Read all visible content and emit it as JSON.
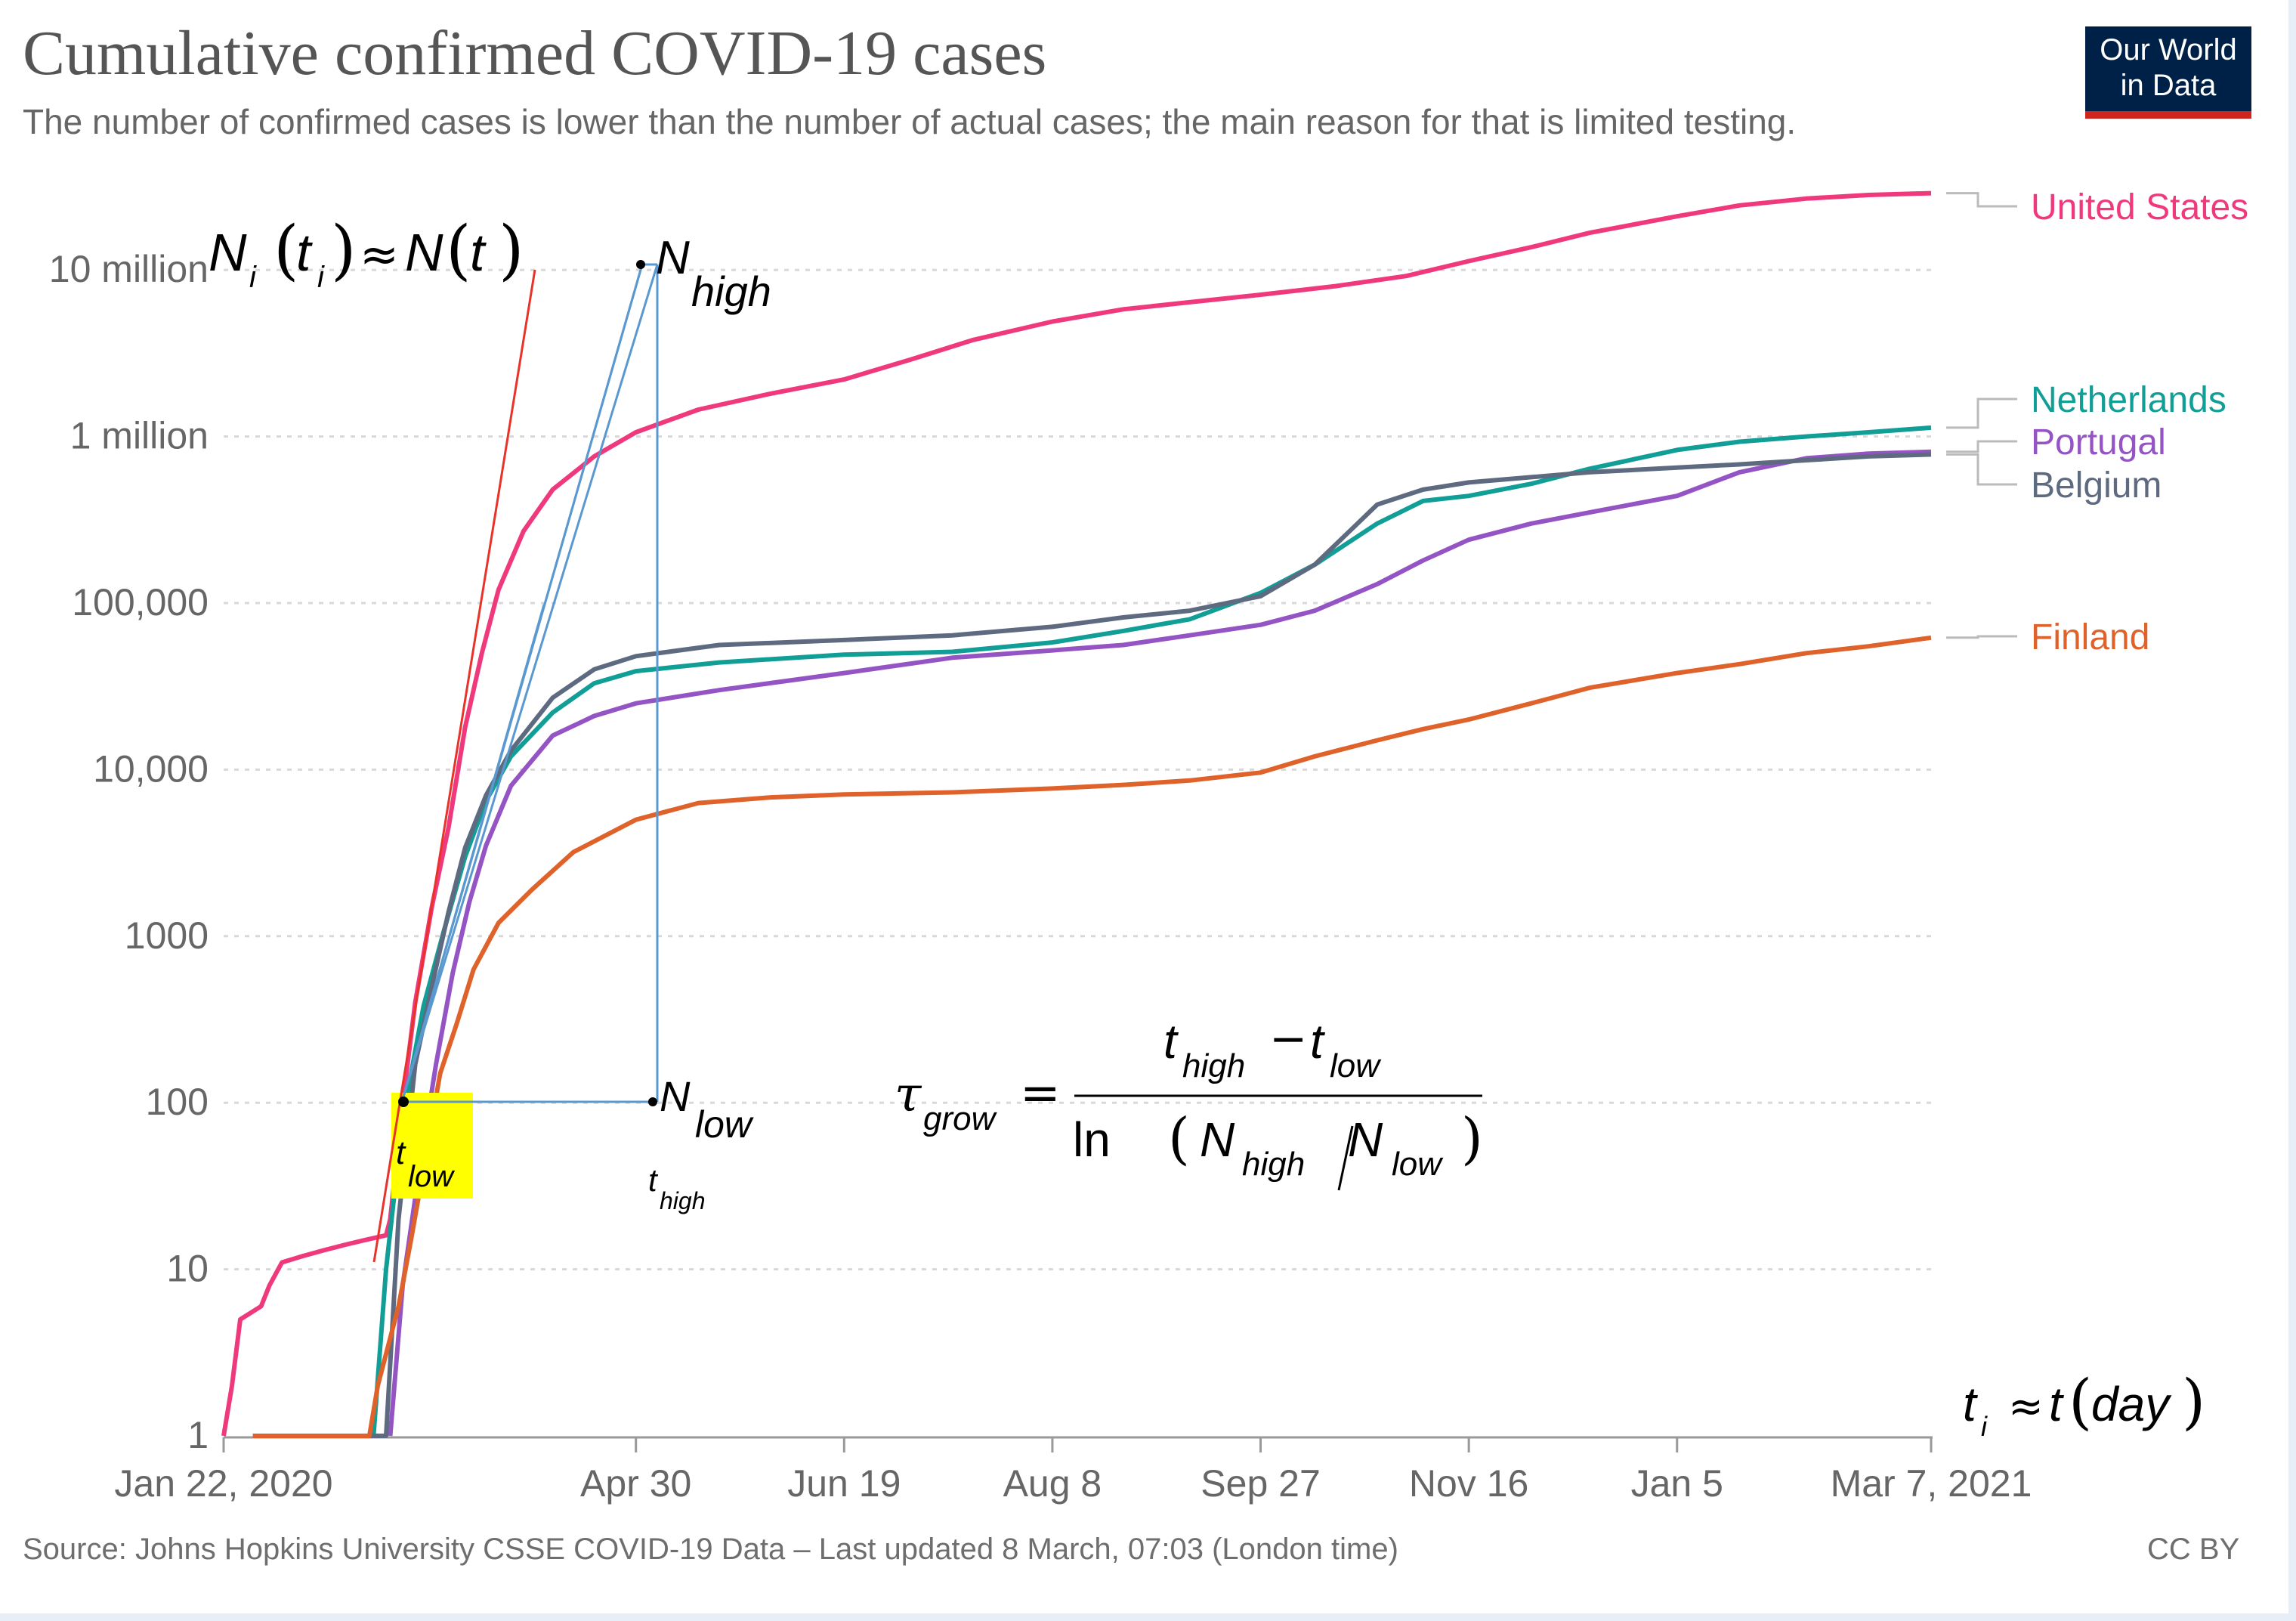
{
  "header": {
    "title": "Cumulative confirmed COVID-19 cases",
    "subtitle": "The number of confirmed cases is lower than the number of actual cases; the main reason for that is limited testing."
  },
  "logo": {
    "line1": "Our World",
    "line2": "in Data"
  },
  "footer": {
    "source": "Source: Johns Hopkins University CSSE COVID-19 Data – Last updated 8 March, 07:03 (London time)",
    "license": "CC BY"
  },
  "colors": {
    "United States": "#f0397d",
    "Netherlands": "#119e96",
    "Portugal": "#9454c4",
    "Belgium": "#5d6a80",
    "Finland": "#e0622b",
    "annotation_red": "#e8332a",
    "annotation_blue": "#5a98d0",
    "highlight": "#ffff00"
  },
  "chart_data": {
    "type": "line",
    "title": "Cumulative confirmed COVID-19 cases",
    "y_scale": "log",
    "ylim": [
      1,
      20000000
    ],
    "xlim": [
      "2020-01-22",
      "2021-03-07"
    ],
    "x_ticks": [
      {
        "date": "2020-01-22",
        "label": "Jan 22, 2020"
      },
      {
        "date": "2020-04-30",
        "label": "Apr 30"
      },
      {
        "date": "2020-06-19",
        "label": "Jun 19"
      },
      {
        "date": "2020-08-08",
        "label": "Aug 8"
      },
      {
        "date": "2020-09-27",
        "label": "Sep 27"
      },
      {
        "date": "2020-11-16",
        "label": "Nov 16"
      },
      {
        "date": "2021-01-05",
        "label": "Jan 5"
      },
      {
        "date": "2021-03-07",
        "label": "Mar 7, 2021"
      }
    ],
    "y_ticks": [
      {
        "value": 1,
        "label": "1"
      },
      {
        "value": 10,
        "label": "10"
      },
      {
        "value": 100,
        "label": "100"
      },
      {
        "value": 1000,
        "label": "1000"
      },
      {
        "value": 10000,
        "label": "10,000"
      },
      {
        "value": 100000,
        "label": "100,000"
      },
      {
        "value": 1000000,
        "label": "1 million"
      },
      {
        "value": 10000000,
        "label": "10 million"
      }
    ],
    "grid": "horizontal dotted",
    "legend": "right, labels at line ends",
    "series": [
      {
        "name": "United States",
        "points": [
          [
            "2020-01-22",
            1
          ],
          [
            "2020-01-24",
            2
          ],
          [
            "2020-01-26",
            5
          ],
          [
            "2020-01-31",
            6
          ],
          [
            "2020-02-02",
            8
          ],
          [
            "2020-02-05",
            11
          ],
          [
            "2020-02-10",
            12
          ],
          [
            "2020-02-15",
            13
          ],
          [
            "2020-02-20",
            14
          ],
          [
            "2020-02-25",
            15
          ],
          [
            "2020-03-01",
            16
          ],
          [
            "2020-03-02",
            20
          ],
          [
            "2020-03-05",
            100
          ],
          [
            "2020-03-08",
            400
          ],
          [
            "2020-03-12",
            1500
          ],
          [
            "2020-03-16",
            4500
          ],
          [
            "2020-03-20",
            18000
          ],
          [
            "2020-03-24",
            50000
          ],
          [
            "2020-03-28",
            120000
          ],
          [
            "2020-04-03",
            270000
          ],
          [
            "2020-04-10",
            480000
          ],
          [
            "2020-04-20",
            760000
          ],
          [
            "2020-04-30",
            1060000
          ],
          [
            "2020-05-15",
            1450000
          ],
          [
            "2020-06-01",
            1800000
          ],
          [
            "2020-06-19",
            2200000
          ],
          [
            "2020-07-05",
            2900000
          ],
          [
            "2020-07-20",
            3800000
          ],
          [
            "2020-08-08",
            4900000
          ],
          [
            "2020-08-25",
            5800000
          ],
          [
            "2020-09-10",
            6400000
          ],
          [
            "2020-09-27",
            7100000
          ],
          [
            "2020-10-15",
            8000000
          ],
          [
            "2020-11-01",
            9200000
          ],
          [
            "2020-11-16",
            11300000
          ],
          [
            "2020-12-01",
            13700000
          ],
          [
            "2020-12-15",
            16700000
          ],
          [
            "2021-01-05",
            21000000
          ],
          [
            "2021-01-20",
            24400000
          ],
          [
            "2021-02-05",
            26800000
          ],
          [
            "2021-02-20",
            28200000
          ],
          [
            "2021-03-07",
            28900000
          ]
        ]
      },
      {
        "name": "Netherlands",
        "points": [
          [
            "2020-02-27",
            1
          ],
          [
            "2020-03-01",
            10
          ],
          [
            "2020-03-05",
            80
          ],
          [
            "2020-03-10",
            380
          ],
          [
            "2020-03-15",
            1100
          ],
          [
            "2020-03-20",
            3000
          ],
          [
            "2020-03-25",
            6500
          ],
          [
            "2020-03-31",
            12000
          ],
          [
            "2020-04-10",
            22000
          ],
          [
            "2020-04-20",
            33000
          ],
          [
            "2020-04-30",
            39000
          ],
          [
            "2020-05-20",
            44000
          ],
          [
            "2020-06-19",
            49000
          ],
          [
            "2020-07-15",
            51000
          ],
          [
            "2020-08-08",
            58000
          ],
          [
            "2020-08-25",
            68000
          ],
          [
            "2020-09-10",
            80000
          ],
          [
            "2020-09-27",
            115000
          ],
          [
            "2020-10-10",
            170000
          ],
          [
            "2020-10-25",
            300000
          ],
          [
            "2020-11-05",
            410000
          ],
          [
            "2020-11-16",
            440000
          ],
          [
            "2020-12-01",
            520000
          ],
          [
            "2020-12-15",
            640000
          ],
          [
            "2021-01-05",
            830000
          ],
          [
            "2021-01-20",
            930000
          ],
          [
            "2021-02-05",
            1000000
          ],
          [
            "2021-02-20",
            1060000
          ],
          [
            "2021-03-07",
            1130000
          ]
        ]
      },
      {
        "name": "Portugal",
        "points": [
          [
            "2020-03-02",
            1
          ],
          [
            "2020-03-05",
            8
          ],
          [
            "2020-03-09",
            40
          ],
          [
            "2020-03-13",
            170
          ],
          [
            "2020-03-17",
            600
          ],
          [
            "2020-03-21",
            1600
          ],
          [
            "2020-03-25",
            3500
          ],
          [
            "2020-03-31",
            8000
          ],
          [
            "2020-04-10",
            16000
          ],
          [
            "2020-04-20",
            21000
          ],
          [
            "2020-04-30",
            25000
          ],
          [
            "2020-05-20",
            30000
          ],
          [
            "2020-06-19",
            38000
          ],
          [
            "2020-07-15",
            47000
          ],
          [
            "2020-08-08",
            52000
          ],
          [
            "2020-08-25",
            56000
          ],
          [
            "2020-09-10",
            64000
          ],
          [
            "2020-09-27",
            74000
          ],
          [
            "2020-10-10",
            90000
          ],
          [
            "2020-10-25",
            130000
          ],
          [
            "2020-11-05",
            180000
          ],
          [
            "2020-11-16",
            240000
          ],
          [
            "2020-12-01",
            300000
          ],
          [
            "2020-12-15",
            350000
          ],
          [
            "2021-01-05",
            440000
          ],
          [
            "2021-01-20",
            610000
          ],
          [
            "2021-02-05",
            740000
          ],
          [
            "2021-02-20",
            790000
          ],
          [
            "2021-03-07",
            810000
          ]
        ]
      },
      {
        "name": "Belgium",
        "points": [
          [
            "2020-02-04",
            1
          ],
          [
            "2020-03-01",
            1
          ],
          [
            "2020-03-04",
            20
          ],
          [
            "2020-03-08",
            170
          ],
          [
            "2020-03-12",
            500
          ],
          [
            "2020-03-16",
            1400
          ],
          [
            "2020-03-20",
            3400
          ],
          [
            "2020-03-25",
            7000
          ],
          [
            "2020-03-31",
            13000
          ],
          [
            "2020-04-10",
            27000
          ],
          [
            "2020-04-20",
            40000
          ],
          [
            "2020-04-30",
            48000
          ],
          [
            "2020-05-20",
            56000
          ],
          [
            "2020-06-19",
            60000
          ],
          [
            "2020-07-15",
            64000
          ],
          [
            "2020-08-08",
            72000
          ],
          [
            "2020-08-25",
            82000
          ],
          [
            "2020-09-10",
            90000
          ],
          [
            "2020-09-27",
            110000
          ],
          [
            "2020-10-10",
            170000
          ],
          [
            "2020-10-25",
            390000
          ],
          [
            "2020-11-05",
            480000
          ],
          [
            "2020-11-16",
            530000
          ],
          [
            "2020-12-01",
            570000
          ],
          [
            "2020-12-15",
            610000
          ],
          [
            "2021-01-05",
            650000
          ],
          [
            "2021-01-20",
            680000
          ],
          [
            "2021-02-05",
            720000
          ],
          [
            "2021-02-20",
            760000
          ],
          [
            "2021-03-07",
            780000
          ]
        ]
      },
      {
        "name": "Finland",
        "points": [
          [
            "2020-01-29",
            1
          ],
          [
            "2020-02-26",
            1
          ],
          [
            "2020-02-28",
            2
          ],
          [
            "2020-03-04",
            6
          ],
          [
            "2020-03-07",
            15
          ],
          [
            "2020-03-10",
            40
          ],
          [
            "2020-03-14",
            150
          ],
          [
            "2020-03-18",
            300
          ],
          [
            "2020-03-22",
            630
          ],
          [
            "2020-03-28",
            1200
          ],
          [
            "2020-04-05",
            1900
          ],
          [
            "2020-04-15",
            3200
          ],
          [
            "2020-04-30",
            5000
          ],
          [
            "2020-05-15",
            6300
          ],
          [
            "2020-06-01",
            6800
          ],
          [
            "2020-06-19",
            7100
          ],
          [
            "2020-07-15",
            7300
          ],
          [
            "2020-08-08",
            7700
          ],
          [
            "2020-08-25",
            8100
          ],
          [
            "2020-09-10",
            8600
          ],
          [
            "2020-09-27",
            9600
          ],
          [
            "2020-10-10",
            12000
          ],
          [
            "2020-10-25",
            15000
          ],
          [
            "2020-11-05",
            17500
          ],
          [
            "2020-11-16",
            20000
          ],
          [
            "2020-12-01",
            25000
          ],
          [
            "2020-12-15",
            31000
          ],
          [
            "2021-01-05",
            38000
          ],
          [
            "2021-01-20",
            43000
          ],
          [
            "2021-02-05",
            50000
          ],
          [
            "2021-02-20",
            55000
          ],
          [
            "2021-03-07",
            62000
          ]
        ]
      }
    ],
    "annotations": {
      "n_high": "N",
      "n_high_sub": "high",
      "n_low": "N",
      "n_low_sub": "low",
      "t_low": "t",
      "t_low_sub": "low",
      "t_high": "t",
      "t_high_sub": "high",
      "approx_left": {
        "Ni": "N",
        "Ni_sub": "i",
        "ti": "t",
        "ti_sub": "i",
        "approx": "≈",
        "N": "N",
        "t": "t"
      },
      "approx_right": {
        "t": "t",
        "t_sub": "i",
        "approx": "≈",
        "t2": "t",
        "day": "day"
      },
      "formula": {
        "tau": "τ",
        "tau_sub": "grow",
        "equals": "=",
        "num_t1": "t",
        "num_t1_sub": "high",
        "minus": "−",
        "num_t2": "t",
        "num_t2_sub": "low",
        "ln": "ln",
        "den_N1": "N",
        "den_N1_sub": "high",
        "den_N2": "N",
        "den_N2_sub": "low"
      }
    }
  }
}
